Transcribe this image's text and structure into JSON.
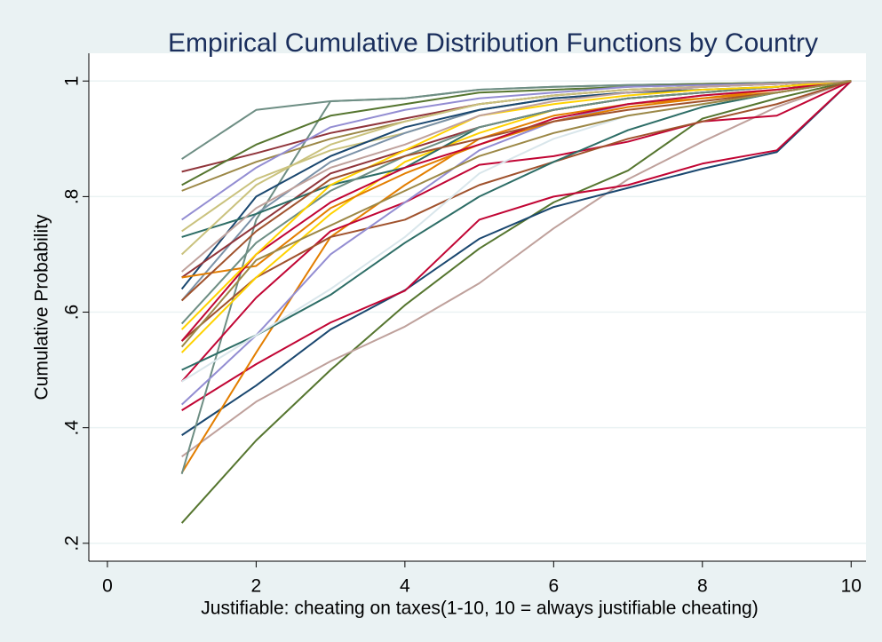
{
  "chart_data": {
    "type": "line",
    "title": "Empirical Cumulative Distribution Functions by Country",
    "x_label": "Justifiable: cheating on taxes(1-10, 10 = always justifiable cheating)",
    "y_label": "Cumulative Probability",
    "x": [
      1,
      2,
      3,
      4,
      5,
      6,
      7,
      8,
      9,
      10
    ],
    "xlim": [
      -0.25,
      10.2
    ],
    "xticks": [
      0,
      2,
      4,
      6,
      8,
      10
    ],
    "ylim": [
      0.169,
      1.048
    ],
    "yticks": [
      {
        "value": 0.2,
        "label": ".2"
      },
      {
        "value": 0.4,
        "label": ".4"
      },
      {
        "value": 0.6,
        "label": ".6"
      },
      {
        "value": 0.8,
        "label": ".8"
      },
      1
    ],
    "grid": true,
    "series": [
      {
        "color": "#55752f",
        "values": [
          0.235,
          0.378,
          0.5,
          0.612,
          0.71,
          0.79,
          0.845,
          0.935,
          0.97,
          1
        ]
      },
      {
        "color": "#bfa19c",
        "values": [
          0.35,
          0.445,
          0.515,
          0.575,
          0.65,
          0.745,
          0.83,
          0.895,
          0.955,
          1
        ]
      },
      {
        "color": "#1a476f",
        "values": [
          0.387,
          0.473,
          0.57,
          0.638,
          0.727,
          0.782,
          0.815,
          0.848,
          0.877,
          1
        ]
      },
      {
        "color": "#c10534",
        "values": [
          0.43,
          0.51,
          0.582,
          0.637,
          0.76,
          0.8,
          0.82,
          0.857,
          0.88,
          1
        ]
      },
      {
        "color": "#e37e00",
        "values": [
          0.322,
          0.53,
          0.73,
          0.82,
          0.9,
          0.94,
          0.96,
          0.97,
          0.98,
          1
        ]
      },
      {
        "color": "#6e8e84",
        "values": [
          0.32,
          0.76,
          0.965,
          0.97,
          0.985,
          0.99,
          0.993,
          0.995,
          0.997,
          1
        ]
      },
      {
        "color": "#6e8e84",
        "values": [
          0.865,
          0.95,
          0.965,
          0.97,
          0.985,
          0.99,
          0.993,
          0.995,
          0.997,
          1
        ]
      },
      {
        "color": "#90353b",
        "values": [
          0.843,
          0.875,
          0.91,
          0.935,
          0.96,
          0.975,
          0.985,
          0.99,
          0.995,
          1
        ]
      },
      {
        "color": "#c10534",
        "values": [
          0.48,
          0.625,
          0.74,
          0.79,
          0.855,
          0.87,
          0.895,
          0.93,
          0.94,
          1
        ]
      },
      {
        "color": "#a0522d",
        "values": [
          0.55,
          0.66,
          0.73,
          0.76,
          0.82,
          0.86,
          0.9,
          0.93,
          0.96,
          1
        ]
      },
      {
        "color": "#2d6d66",
        "values": [
          0.5,
          0.56,
          0.63,
          0.72,
          0.8,
          0.86,
          0.915,
          0.955,
          0.98,
          1
        ]
      },
      {
        "color": "#938dd2",
        "values": [
          0.44,
          0.56,
          0.7,
          0.79,
          0.88,
          0.93,
          0.96,
          0.975,
          0.985,
          1
        ]
      },
      {
        "color": "#d9e6eb",
        "values": [
          0.48,
          0.56,
          0.64,
          0.73,
          0.84,
          0.9,
          0.94,
          0.96,
          0.98,
          1
        ]
      },
      {
        "color": "#ffd200",
        "values": [
          0.53,
          0.66,
          0.77,
          0.86,
          0.91,
          0.95,
          0.97,
          0.98,
          0.99,
          1
        ]
      },
      {
        "color": "#cac27e",
        "values": [
          0.74,
          0.83,
          0.88,
          0.91,
          0.95,
          0.97,
          0.98,
          0.99,
          0.995,
          1
        ]
      },
      {
        "color": "#9c8847",
        "values": [
          0.81,
          0.86,
          0.9,
          0.93,
          0.96,
          0.975,
          0.985,
          0.99,
          0.995,
          1
        ]
      },
      {
        "color": "#55752f",
        "values": [
          0.82,
          0.89,
          0.94,
          0.96,
          0.98,
          0.985,
          0.99,
          0.995,
          0.997,
          1
        ]
      },
      {
        "color": "#7b92a8",
        "values": [
          0.62,
          0.77,
          0.86,
          0.91,
          0.95,
          0.97,
          0.98,
          0.99,
          0.995,
          1
        ]
      },
      {
        "color": "#1a476f",
        "values": [
          0.64,
          0.8,
          0.87,
          0.92,
          0.95,
          0.97,
          0.98,
          0.985,
          0.99,
          1
        ]
      },
      {
        "color": "#90353b",
        "values": [
          0.66,
          0.75,
          0.84,
          0.88,
          0.92,
          0.95,
          0.97,
          0.98,
          0.99,
          1
        ]
      },
      {
        "color": "#e37e00",
        "values": [
          0.66,
          0.68,
          0.78,
          0.84,
          0.89,
          0.93,
          0.955,
          0.97,
          0.985,
          1
        ]
      },
      {
        "color": "#938dd2",
        "values": [
          0.76,
          0.85,
          0.92,
          0.95,
          0.97,
          0.98,
          0.99,
          0.993,
          0.996,
          1
        ]
      },
      {
        "color": "#2d6d66",
        "values": [
          0.73,
          0.77,
          0.82,
          0.85,
          0.92,
          0.95,
          0.97,
          0.98,
          0.99,
          1
        ]
      },
      {
        "color": "#cac27e",
        "values": [
          0.7,
          0.82,
          0.89,
          0.93,
          0.96,
          0.975,
          0.985,
          0.99,
          0.995,
          1
        ]
      },
      {
        "color": "#c10534",
        "values": [
          0.55,
          0.7,
          0.79,
          0.85,
          0.89,
          0.935,
          0.96,
          0.975,
          0.985,
          1
        ]
      },
      {
        "color": "#6e8e84",
        "values": [
          0.58,
          0.72,
          0.81,
          0.87,
          0.92,
          0.95,
          0.97,
          0.98,
          0.99,
          1
        ]
      },
      {
        "color": "#ffd200",
        "values": [
          0.57,
          0.7,
          0.82,
          0.88,
          0.94,
          0.96,
          0.975,
          0.985,
          0.99,
          1
        ]
      },
      {
        "color": "#a0522d",
        "values": [
          0.62,
          0.74,
          0.83,
          0.87,
          0.9,
          0.93,
          0.95,
          0.965,
          0.98,
          1
        ]
      },
      {
        "color": "#bfa19c",
        "values": [
          0.67,
          0.78,
          0.85,
          0.89,
          0.94,
          0.965,
          0.98,
          0.99,
          0.995,
          1
        ]
      },
      {
        "color": "#9c8847",
        "values": [
          0.54,
          0.69,
          0.75,
          0.81,
          0.87,
          0.91,
          0.94,
          0.96,
          0.98,
          1
        ]
      }
    ]
  }
}
